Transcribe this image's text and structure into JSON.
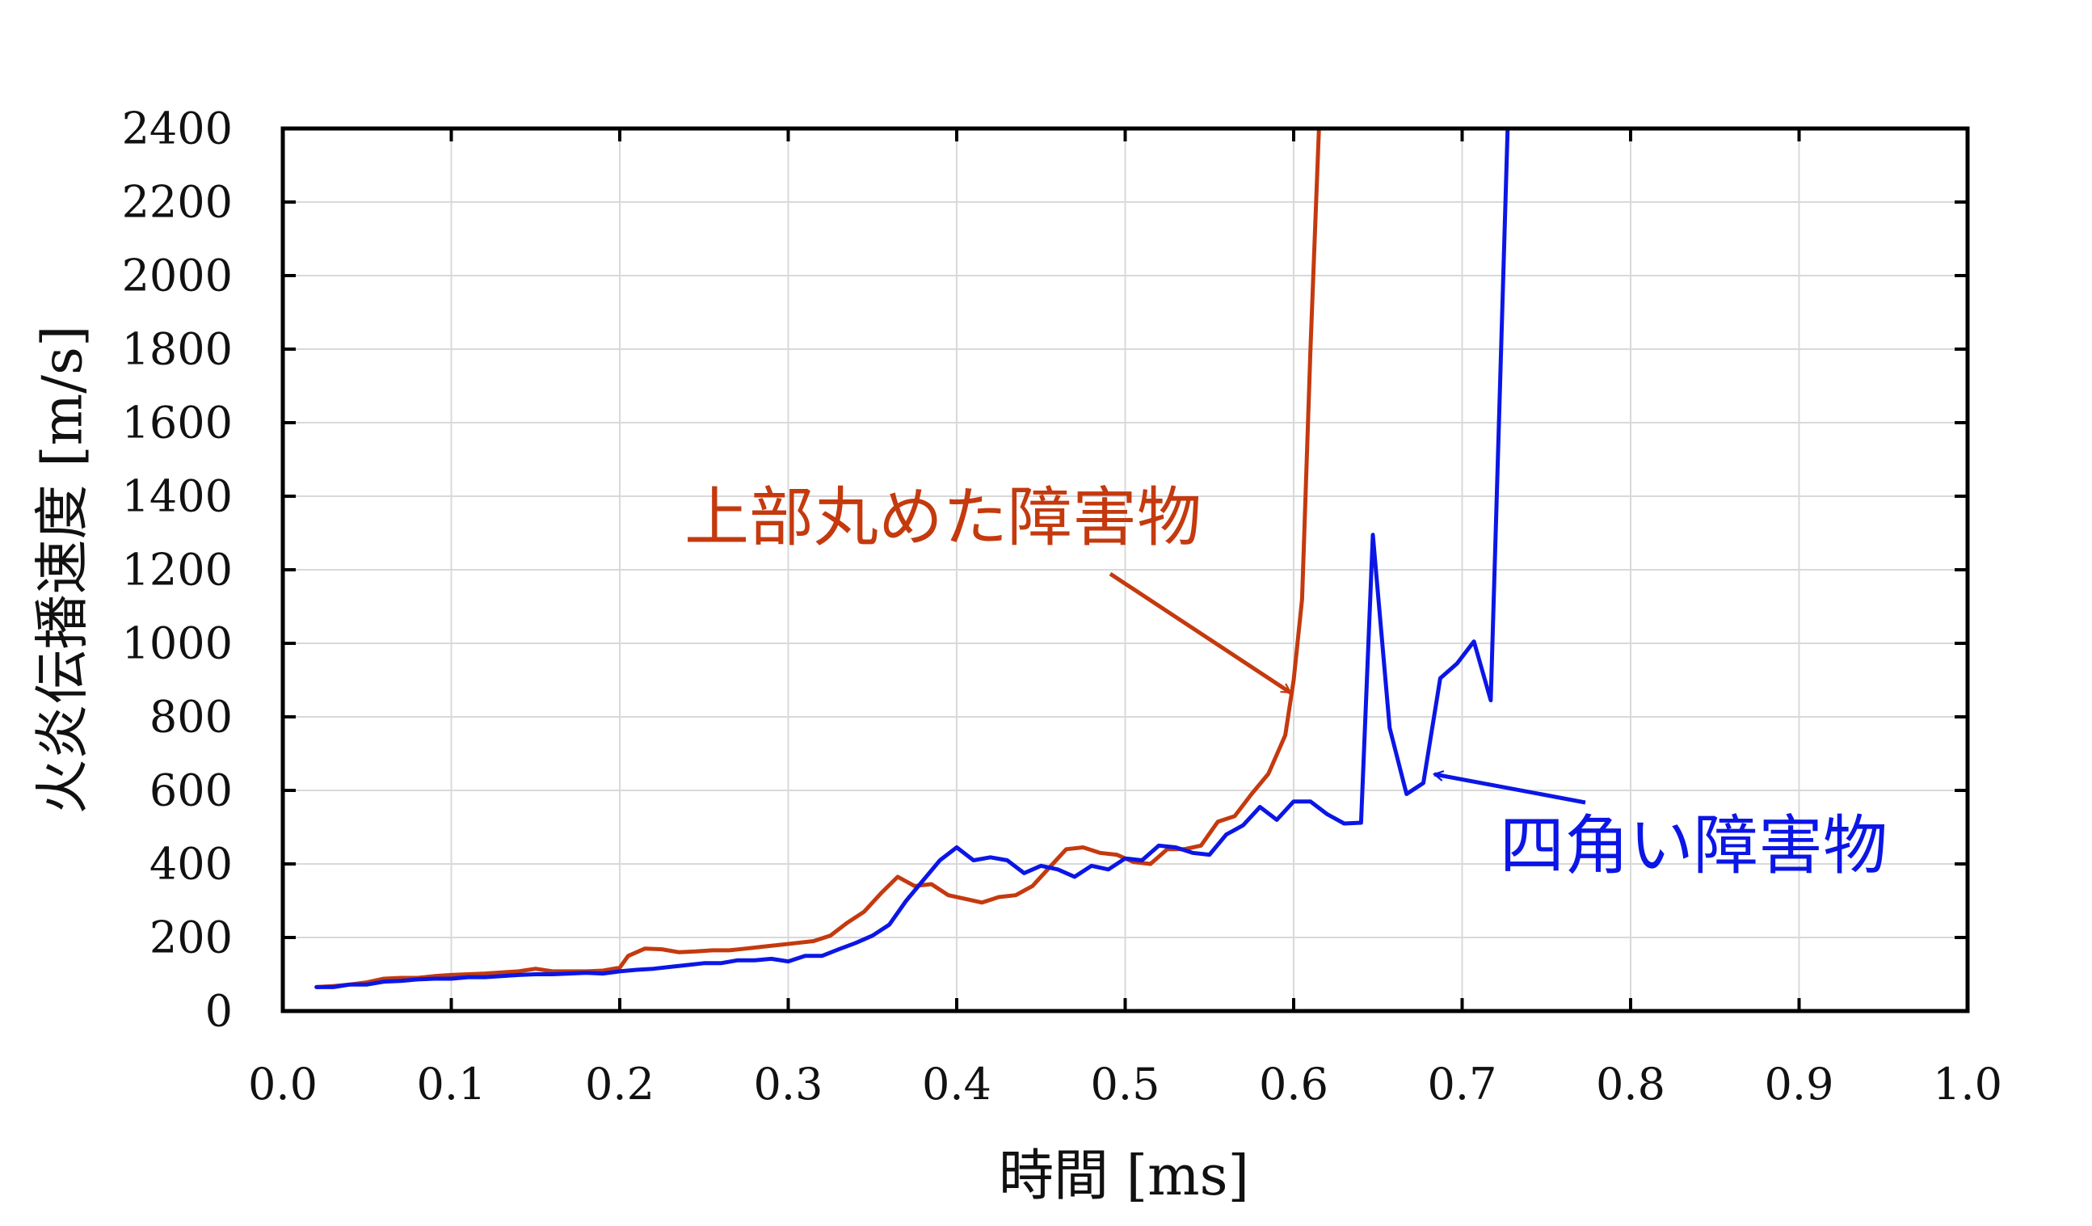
{
  "chart_data": {
    "type": "line",
    "xlabel": "時間 [ms]",
    "ylabel": "火炎伝播速度 [m/s]",
    "xlim": [
      0.0,
      1.0
    ],
    "ylim": [
      0,
      2400
    ],
    "xticks": [
      "0.0",
      "0.1",
      "0.2",
      "0.3",
      "0.4",
      "0.5",
      "0.6",
      "0.7",
      "0.8",
      "0.9",
      "1.0"
    ],
    "yticks": [
      "0",
      "200",
      "400",
      "600",
      "800",
      "1000",
      "1200",
      "1400",
      "1600",
      "1800",
      "2000",
      "2200",
      "2400"
    ],
    "grid": true,
    "series": [
      {
        "name": "上部丸めた障害物",
        "color": "#c43a0e",
        "x": [
          0.02,
          0.03,
          0.04,
          0.05,
          0.06,
          0.07,
          0.08,
          0.09,
          0.1,
          0.11,
          0.12,
          0.13,
          0.14,
          0.15,
          0.16,
          0.17,
          0.18,
          0.19,
          0.2,
          0.205,
          0.215,
          0.225,
          0.235,
          0.245,
          0.255,
          0.265,
          0.275,
          0.285,
          0.295,
          0.305,
          0.315,
          0.325,
          0.335,
          0.345,
          0.355,
          0.365,
          0.375,
          0.385,
          0.395,
          0.405,
          0.415,
          0.425,
          0.435,
          0.445,
          0.455,
          0.465,
          0.475,
          0.485,
          0.495,
          0.505,
          0.515,
          0.525,
          0.535,
          0.545,
          0.555,
          0.565,
          0.575,
          0.585,
          0.595,
          0.6,
          0.605,
          0.61,
          0.615
        ],
        "y": [
          65,
          68,
          72,
          78,
          88,
          90,
          90,
          95,
          98,
          100,
          102,
          105,
          108,
          115,
          108,
          108,
          108,
          110,
          118,
          150,
          170,
          168,
          160,
          162,
          165,
          165,
          170,
          175,
          180,
          185,
          190,
          205,
          240,
          270,
          320,
          365,
          340,
          345,
          315,
          305,
          295,
          310,
          315,
          340,
          390,
          440,
          445,
          430,
          425,
          405,
          400,
          440,
          440,
          450,
          515,
          530,
          590,
          645,
          750,
          900,
          1120,
          1800,
          2400
        ]
      },
      {
        "name": "四角い障害物",
        "color": "#0b16e6",
        "x": [
          0.02,
          0.03,
          0.04,
          0.05,
          0.06,
          0.07,
          0.08,
          0.09,
          0.1,
          0.11,
          0.12,
          0.13,
          0.14,
          0.15,
          0.16,
          0.17,
          0.18,
          0.19,
          0.2,
          0.21,
          0.22,
          0.23,
          0.24,
          0.25,
          0.26,
          0.27,
          0.28,
          0.29,
          0.3,
          0.31,
          0.32,
          0.33,
          0.34,
          0.35,
          0.36,
          0.37,
          0.38,
          0.39,
          0.4,
          0.41,
          0.42,
          0.43,
          0.44,
          0.45,
          0.46,
          0.47,
          0.48,
          0.49,
          0.5,
          0.51,
          0.52,
          0.53,
          0.54,
          0.55,
          0.56,
          0.57,
          0.58,
          0.59,
          0.6,
          0.61,
          0.62,
          0.63,
          0.64,
          0.647,
          0.657,
          0.667,
          0.677,
          0.687,
          0.697,
          0.707,
          0.717,
          0.727
        ],
        "y": [
          65,
          65,
          72,
          72,
          80,
          82,
          86,
          88,
          88,
          92,
          92,
          95,
          98,
          100,
          100,
          102,
          104,
          102,
          108,
          112,
          115,
          120,
          125,
          130,
          130,
          138,
          138,
          142,
          135,
          150,
          150,
          168,
          185,
          205,
          235,
          300,
          355,
          410,
          445,
          410,
          418,
          410,
          375,
          395,
          385,
          365,
          395,
          385,
          415,
          410,
          450,
          445,
          430,
          425,
          480,
          505,
          555,
          520,
          570,
          570,
          535,
          510,
          512,
          1295,
          770,
          590,
          620,
          905,
          945,
          1005,
          845,
          2400
        ]
      }
    ]
  }
}
